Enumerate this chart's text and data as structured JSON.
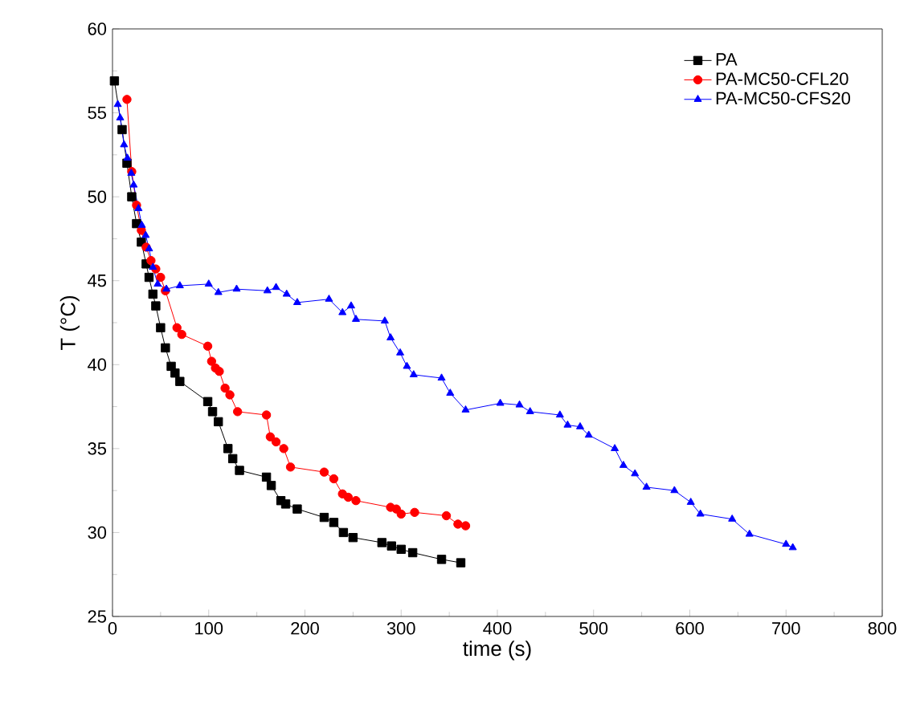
{
  "chart_data": {
    "type": "line",
    "xlabel": "time (s)",
    "ylabel": "T (°C)",
    "xlim": [
      0,
      800
    ],
    "ylim": [
      25,
      60
    ],
    "xticks": [
      0,
      100,
      200,
      300,
      400,
      500,
      600,
      700,
      800
    ],
    "yticks": [
      25,
      30,
      35,
      40,
      45,
      50,
      55,
      60
    ],
    "legend": "top right",
    "grid": false,
    "series": [
      {
        "name": "PA",
        "color": "#000000",
        "marker": "square",
        "x": [
          2,
          10,
          15,
          20,
          25,
          30,
          35,
          38,
          42,
          45,
          50,
          55,
          61,
          65,
          70,
          99,
          104,
          110,
          120,
          125,
          132,
          160,
          165,
          175,
          180,
          192,
          220,
          230,
          240,
          250,
          280,
          290,
          300,
          312,
          342,
          362
        ],
        "values": [
          56.9,
          54,
          52,
          50,
          48.4,
          47.3,
          46,
          45.2,
          44.2,
          43.5,
          42.2,
          41,
          39.9,
          39.5,
          39.0,
          37.8,
          37.2,
          36.6,
          35,
          34.4,
          33.7,
          33.3,
          32.8,
          31.9,
          31.7,
          31.4,
          30.9,
          30.6,
          30.0,
          29.7,
          29.4,
          29.2,
          29.0,
          28.8,
          28.4,
          28.2
        ]
      },
      {
        "name": "PA-MC50-CFL20",
        "color": "#ff0000",
        "marker": "circle",
        "x": [
          15,
          20,
          25,
          30,
          35,
          40,
          45,
          50,
          55,
          67,
          72,
          99,
          103,
          107,
          111,
          117,
          122,
          130,
          160,
          164,
          170,
          178,
          185,
          220,
          230,
          239,
          245,
          253,
          289,
          295,
          300,
          314,
          347,
          359,
          367
        ],
        "values": [
          55.8,
          51.5,
          49.5,
          48,
          47,
          46.2,
          45.7,
          45.2,
          44.4,
          42.2,
          41.8,
          41.1,
          40.2,
          39.8,
          39.6,
          38.6,
          38.2,
          37.2,
          37.0,
          35.7,
          35.4,
          35.0,
          33.9,
          33.6,
          33.2,
          32.3,
          32.1,
          31.9,
          31.5,
          31.4,
          31.1,
          31.2,
          31.0,
          30.5,
          30.4
        ]
      },
      {
        "name": "PA-MC50-CFS20",
        "color": "#0000ff",
        "marker": "triangle",
        "x": [
          5.5,
          8,
          12,
          15.5,
          19.5,
          22,
          27,
          30.5,
          34.5,
          38,
          42,
          47,
          56,
          70,
          100,
          110,
          129,
          161,
          170,
          181,
          192,
          225,
          239,
          248,
          253,
          283,
          289,
          299,
          306,
          313,
          342,
          351,
          367,
          403,
          423,
          434,
          465,
          473,
          486,
          495,
          522,
          531,
          543,
          555,
          584,
          601,
          611,
          644,
          662,
          700,
          707
        ],
        "values": [
          55.5,
          54.7,
          53.1,
          52.3,
          51.4,
          50.7,
          49.3,
          48.3,
          47.7,
          46.9,
          45.8,
          44.8,
          44.5,
          44.7,
          44.8,
          44.3,
          44.5,
          44.4,
          44.6,
          44.2,
          43.7,
          43.9,
          43.1,
          43.5,
          42.7,
          42.6,
          41.6,
          40.7,
          39.9,
          39.4,
          39.2,
          38.3,
          37.3,
          37.7,
          37.6,
          37.2,
          37.0,
          36.4,
          36.3,
          35.8,
          35.0,
          34.0,
          33.5,
          32.7,
          32.5,
          31.8,
          31.1,
          30.8,
          29.9,
          29.3,
          29.1
        ]
      }
    ]
  }
}
